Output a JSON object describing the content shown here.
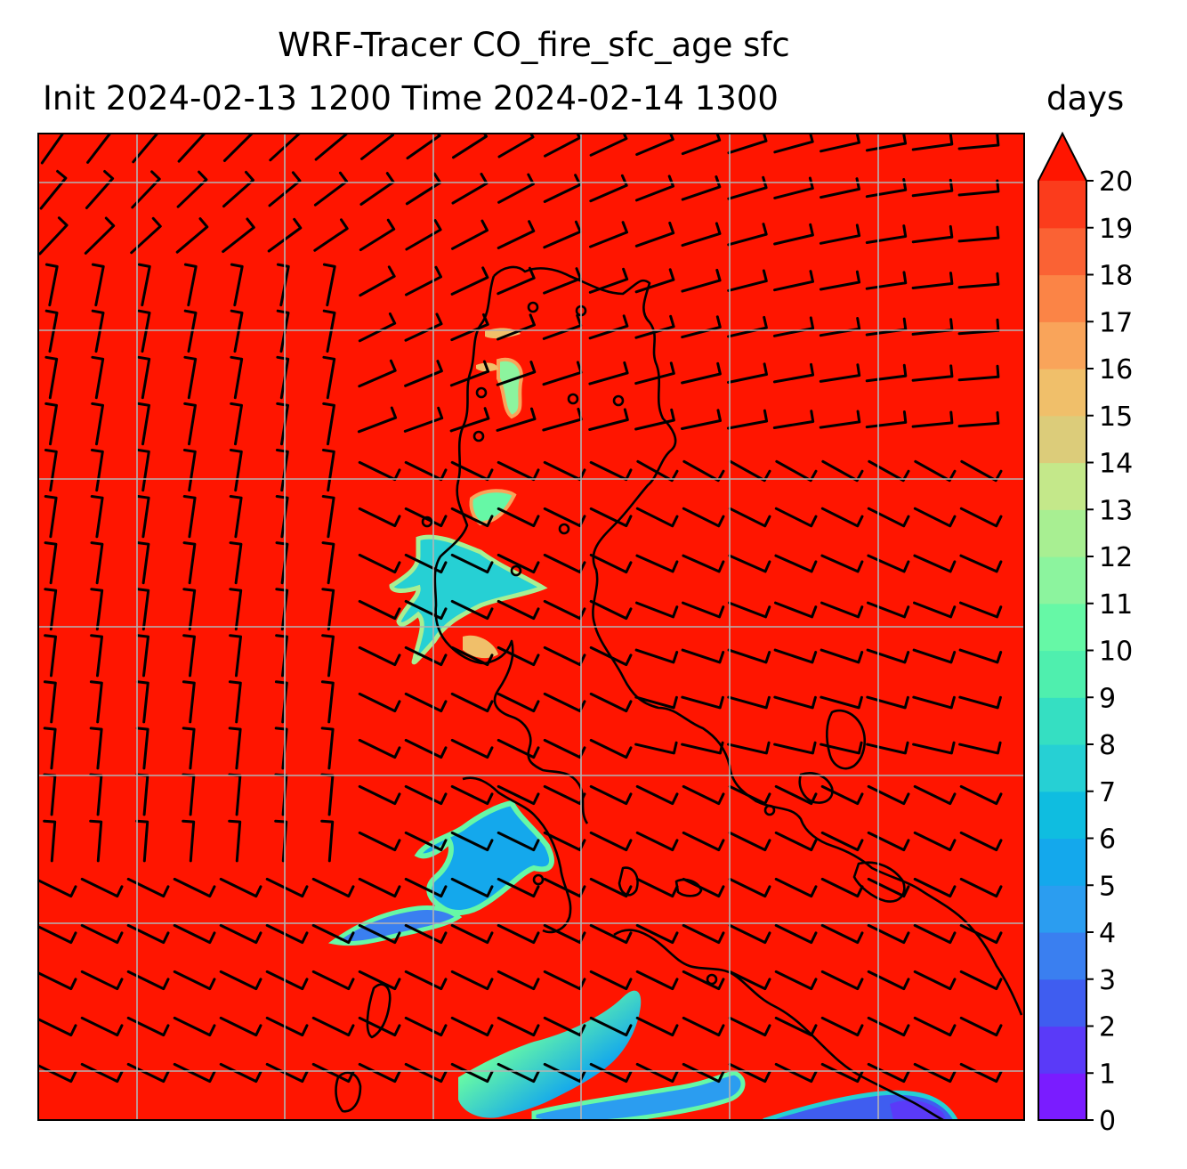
{
  "title": {
    "line1": "WRF-Tracer CO_fire_sfc_age sfc",
    "line2": "Init 2024-02-13 1200 Time 2024-02-14 1300"
  },
  "colorbar": {
    "units": "days",
    "min": 0,
    "max": 20,
    "extend": "max",
    "tick_labels": [
      "0",
      "1",
      "2",
      "3",
      "4",
      "5",
      "6",
      "7",
      "8",
      "9",
      "10",
      "11",
      "12",
      "13",
      "14",
      "15",
      "16",
      "17",
      "18",
      "19",
      "20"
    ],
    "colors": [
      "#7a1cff",
      "#5a3af8",
      "#3f5df0",
      "#3a7ff0",
      "#2b9df0",
      "#14a8ec",
      "#0fbde0",
      "#26d0d4",
      "#35dfc2",
      "#4fefae",
      "#66f8a6",
      "#8cf49e",
      "#a8ef92",
      "#c4e88a",
      "#dccc7a",
      "#f0bf6a",
      "#f9a45a",
      "#fb8446",
      "#fa6234",
      "#fb3c1c",
      "#fd1a08"
    ],
    "over_color": "#ff1500"
  },
  "map": {
    "background_color": "#ff1500",
    "gridlines": true,
    "grid_color": "#b4b4b4",
    "coastline_color": "#000000",
    "wind_barb_color": "#000000"
  }
}
